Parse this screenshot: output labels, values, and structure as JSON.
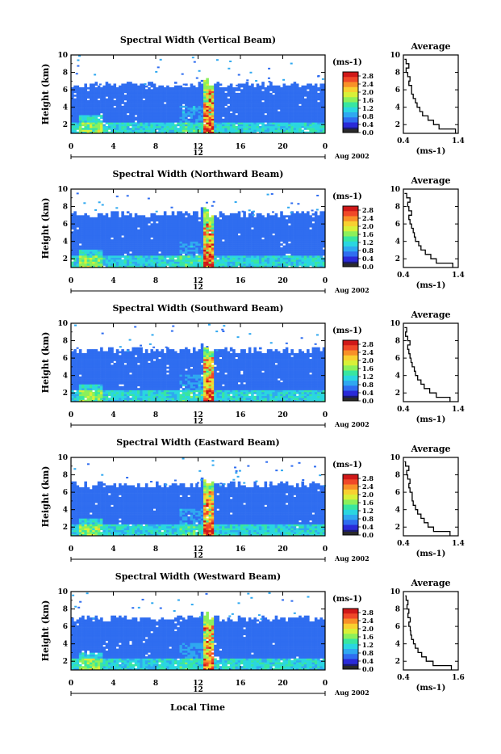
{
  "colors": {
    "colormap": [
      "#1a1a6e",
      "#2a2ad8",
      "#2f6df0",
      "#2fa8f0",
      "#2ad6e0",
      "#38e6a0",
      "#8cf05a",
      "#d8f038",
      "#f8d030",
      "#f89028",
      "#f04828",
      "#d01818"
    ],
    "low_value": "#2a2a2a",
    "profile_line": "#000000"
  },
  "common": {
    "xlabel": "Local Time",
    "date_label": "Aug 2002",
    "center_label": "12",
    "x_ticks": [
      "0",
      "4",
      "8",
      "12",
      "16",
      "20",
      "0"
    ],
    "y_ticks": [
      "2",
      "4",
      "6",
      "8",
      "10"
    ],
    "ylabel": "Height (km)",
    "colorbar_unit": "(ms-1)",
    "colorbar_ticks": [
      "2.8",
      "2.4",
      "2.0",
      "1.6",
      "1.2",
      "0.8",
      "0.4",
      "0.0"
    ],
    "avg_title": "Average",
    "avg_xlabel": "(ms-1)"
  },
  "chart_data": [
    {
      "type": "heatmap",
      "title": "Spectral Width (Vertical Beam)",
      "xlim": [
        0,
        24
      ],
      "ylim": [
        1,
        10
      ],
      "date_label": "Aug 2002",
      "colorbar": {
        "min": 0.0,
        "max": 3.0
      },
      "data_top_km": 6.5,
      "avg_profile": {
        "xlim": [
          0.4,
          1.4
        ],
        "x_ticks": [
          "0.4",
          "1.4"
        ],
        "heights": [
          1,
          1.5,
          2,
          2.5,
          3,
          3.5,
          4,
          4.5,
          5,
          5.5,
          6,
          6.5,
          7,
          7.5,
          8,
          8.5,
          9,
          9.5
        ],
        "values": [
          1.35,
          1.05,
          0.95,
          0.85,
          0.75,
          0.7,
          0.65,
          0.62,
          0.58,
          0.55,
          0.55,
          0.5,
          0.52,
          0.48,
          0.45,
          0.5,
          0.45,
          0.42
        ]
      }
    },
    {
      "type": "heatmap",
      "title": "Spectral Width (Northward Beam)",
      "xlim": [
        0,
        24
      ],
      "ylim": [
        1,
        10
      ],
      "date_label": "Aug 2002",
      "colorbar": {
        "min": 0.0,
        "max": 3.0
      },
      "data_top_km": 7.0,
      "avg_profile": {
        "xlim": [
          0.4,
          1.4
        ],
        "x_ticks": [
          "0.4",
          "1.4"
        ],
        "heights": [
          1,
          1.5,
          2,
          2.5,
          3,
          3.5,
          4,
          4.5,
          5,
          5.5,
          6,
          6.5,
          7,
          7.5,
          8,
          8.5,
          9,
          9.5
        ],
        "values": [
          1.3,
          1.0,
          0.9,
          0.8,
          0.72,
          0.68,
          0.62,
          0.6,
          0.58,
          0.55,
          0.52,
          0.5,
          0.55,
          0.5,
          0.48,
          0.52,
          0.46,
          0.42
        ]
      }
    },
    {
      "type": "heatmap",
      "title": "Spectral Width (Southward Beam)",
      "xlim": [
        0,
        24
      ],
      "ylim": [
        1,
        10
      ],
      "date_label": "Aug 2002",
      "colorbar": {
        "min": 0.0,
        "max": 3.0
      },
      "data_top_km": 6.8,
      "avg_profile": {
        "xlim": [
          0.4,
          1.4
        ],
        "x_ticks": [
          "0.4",
          "1.4"
        ],
        "heights": [
          1,
          1.5,
          2,
          2.5,
          3,
          3.5,
          4,
          4.5,
          5,
          5.5,
          6,
          6.5,
          7,
          7.5,
          8,
          8.5,
          9,
          9.5
        ],
        "values": [
          1.25,
          1.0,
          0.88,
          0.78,
          0.72,
          0.66,
          0.62,
          0.6,
          0.56,
          0.54,
          0.52,
          0.5,
          0.48,
          0.52,
          0.48,
          0.44,
          0.46,
          0.42
        ]
      }
    },
    {
      "type": "heatmap",
      "title": "Spectral Width (Eastward Beam)",
      "xlim": [
        0,
        24
      ],
      "ylim": [
        1,
        10
      ],
      "date_label": "Aug 2002",
      "colorbar": {
        "min": 0.0,
        "max": 3.0
      },
      "data_top_km": 6.8,
      "avg_profile": {
        "xlim": [
          0.4,
          1.4
        ],
        "x_ticks": [
          "0.4",
          "1.4"
        ],
        "heights": [
          1,
          1.5,
          2,
          2.5,
          3,
          3.5,
          4,
          4.5,
          5,
          5.5,
          6,
          6.5,
          7,
          7.5,
          8,
          8.5,
          9,
          9.5
        ],
        "values": [
          1.25,
          0.95,
          0.85,
          0.78,
          0.72,
          0.66,
          0.62,
          0.58,
          0.56,
          0.56,
          0.52,
          0.5,
          0.52,
          0.48,
          0.46,
          0.5,
          0.44,
          0.42
        ]
      }
    },
    {
      "type": "heatmap",
      "title": "Spectral Width (Westward Beam)",
      "xlim": [
        0,
        24
      ],
      "ylim": [
        1,
        10
      ],
      "date_label": "Aug 2002",
      "colorbar": {
        "min": 0.0,
        "max": 3.0
      },
      "data_top_km": 6.8,
      "avg_profile": {
        "xlim": [
          0.4,
          1.6
        ],
        "x_ticks": [
          "0.4",
          "1.6"
        ],
        "heights": [
          1,
          1.5,
          2,
          2.5,
          3,
          3.5,
          4,
          4.5,
          5,
          5.5,
          6,
          6.5,
          7,
          7.5,
          8,
          8.5,
          9,
          9.5
        ],
        "values": [
          1.45,
          1.05,
          0.9,
          0.8,
          0.72,
          0.66,
          0.62,
          0.58,
          0.56,
          0.55,
          0.52,
          0.55,
          0.5,
          0.52,
          0.48,
          0.5,
          0.46,
          0.44
        ]
      }
    }
  ]
}
